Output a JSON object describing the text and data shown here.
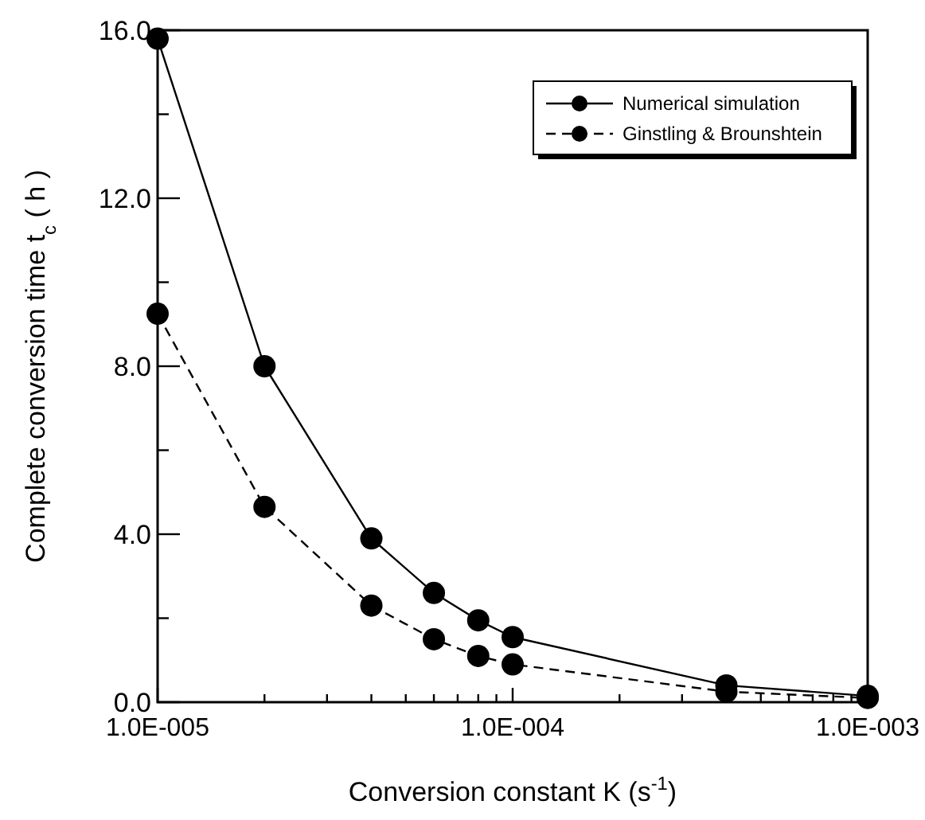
{
  "chart_data": {
    "type": "line",
    "xlabel": "Conversion constant K (s$^{-1}$)",
    "ylabel": "Complete conversion time t$_{c}$ ( h )",
    "x": [
      1e-05,
      2e-05,
      4e-05,
      6e-05,
      8e-05,
      0.0001,
      0.0004,
      0.001
    ],
    "series": [
      {
        "name": "Numerical simulation",
        "color": "#000000",
        "line_style": "solid",
        "values": [
          15.8,
          8.0,
          3.9,
          2.6,
          1.95,
          1.55,
          0.4,
          0.15
        ]
      },
      {
        "name": "Ginstling & Brounshtein",
        "color": "#000000",
        "line_style": "dashed",
        "values": [
          9.25,
          4.65,
          2.3,
          1.5,
          1.1,
          0.9,
          0.25,
          0.1
        ]
      }
    ],
    "log": "x",
    "marker": "circle",
    "legend": "top right",
    "grid": false,
    "xlim": [
      1e-05,
      0.001
    ],
    "xticks": [
      {
        "value": 1e-05,
        "label": "1.0E-005"
      },
      {
        "value": 2e-05,
        "label": null
      },
      {
        "value": 3e-05,
        "label": null
      },
      {
        "value": 4e-05,
        "label": null
      },
      {
        "value": 5e-05,
        "label": null
      },
      {
        "value": 6e-05,
        "label": null
      },
      {
        "value": 7e-05,
        "label": null
      },
      {
        "value": 8e-05,
        "label": null
      },
      {
        "value": 9e-05,
        "label": null
      },
      {
        "value": 0.0001,
        "label": "1.0E-004"
      },
      {
        "value": 0.0002,
        "label": null
      },
      {
        "value": 0.0003,
        "label": null
      },
      {
        "value": 0.0004,
        "label": null
      },
      {
        "value": 0.0005,
        "label": null
      },
      {
        "value": 0.0006,
        "label": null
      },
      {
        "value": 0.0007,
        "label": null
      },
      {
        "value": 0.0008,
        "label": null
      },
      {
        "value": 0.0009,
        "label": null
      },
      {
        "value": 0.001,
        "label": "1.0E-003"
      }
    ],
    "ylim": [
      0,
      16
    ],
    "yticks": [
      {
        "value": 0,
        "label": "0.0"
      },
      {
        "value": 2,
        "label": null
      },
      {
        "value": 4,
        "label": "4.0"
      },
      {
        "value": 6,
        "label": null
      },
      {
        "value": 8,
        "label": "8.0"
      },
      {
        "value": 10,
        "label": null
      },
      {
        "value": 12,
        "label": "12.0"
      },
      {
        "value": 14,
        "label": null
      },
      {
        "value": 16,
        "label": "16.0"
      }
    ]
  }
}
